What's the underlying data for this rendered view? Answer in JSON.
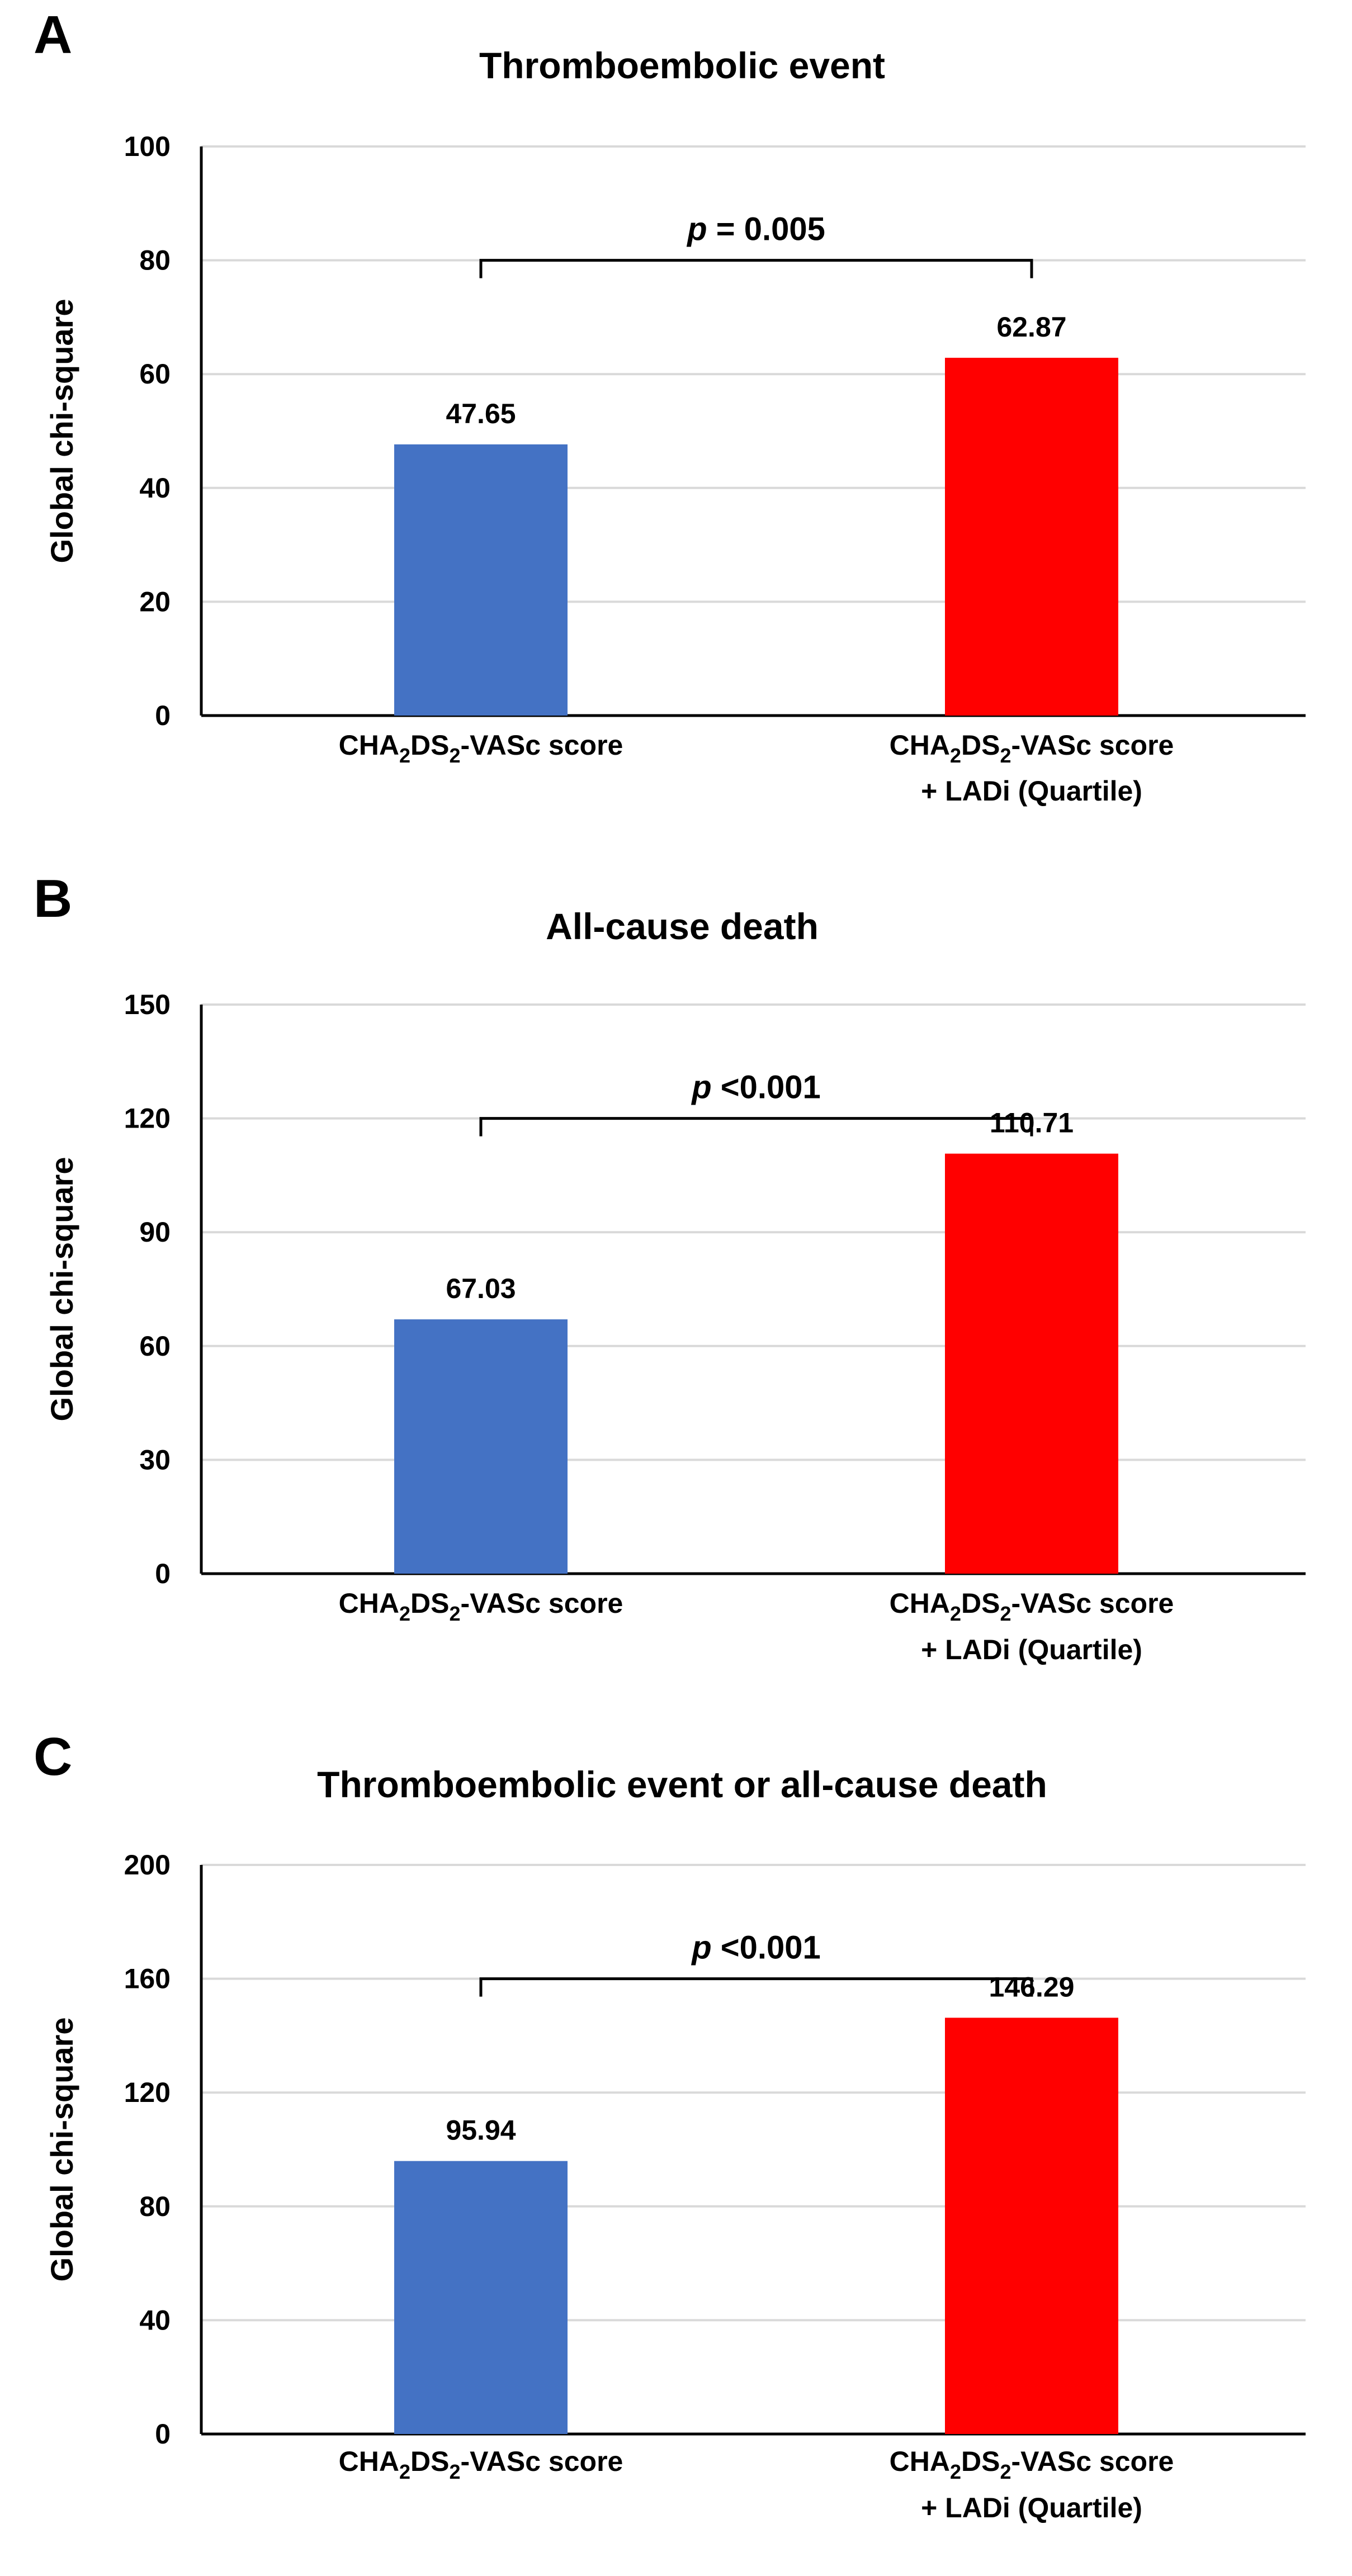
{
  "figure": {
    "category_labels": [
      {
        "main": "CHA",
        "sub1": "2",
        "mid": "DS",
        "sub2": "2",
        "tail": "-VASc score",
        "line2": ""
      },
      {
        "main": "CHA",
        "sub1": "2",
        "mid": "DS",
        "sub2": "2",
        "tail": "-VASc score",
        "line2": "+ LADi (Quartile)"
      }
    ]
  },
  "chart_data": [
    {
      "panel": "A",
      "type": "bar",
      "title": "Thromboembolic event",
      "ylabel": "Global chi-square",
      "xlabel": "",
      "categories": [
        "CHA2DS2-VASc score",
        "CHA2DS2-VASc score + LADi (Quartile)"
      ],
      "values": [
        47.65,
        62.87
      ],
      "value_labels": [
        "47.65",
        "62.87"
      ],
      "colors": [
        "#4472c4",
        "#ff0000"
      ],
      "ylim": [
        0,
        100
      ],
      "yticks": [
        0,
        20,
        40,
        60,
        80,
        100
      ],
      "grid": true,
      "comparison": {
        "p_symbol": "p",
        "p_text": " = 0.005",
        "bracket_at": 80
      }
    },
    {
      "panel": "B",
      "type": "bar",
      "title": "All-cause death",
      "ylabel": "Global chi-square",
      "xlabel": "",
      "categories": [
        "CHA2DS2-VASc score",
        "CHA2DS2-VASc score + LADi (Quartile)"
      ],
      "values": [
        67.03,
        110.71
      ],
      "value_labels": [
        "67.03",
        "110.71"
      ],
      "colors": [
        "#4472c4",
        "#ff0000"
      ],
      "ylim": [
        0,
        150
      ],
      "yticks": [
        0,
        30,
        60,
        90,
        120,
        150
      ],
      "grid": true,
      "comparison": {
        "p_symbol": "p",
        "p_text": " <0.001",
        "bracket_at": 120
      }
    },
    {
      "panel": "C",
      "type": "bar",
      "title": "Thromboembolic event or all-cause death",
      "ylabel": "Global chi-square",
      "xlabel": "",
      "categories": [
        "CHA2DS2-VASc score",
        "CHA2DS2-VASc score + LADi (Quartile)"
      ],
      "values": [
        95.94,
        146.29
      ],
      "value_labels": [
        "95.94",
        "146.29"
      ],
      "colors": [
        "#4472c4",
        "#ff0000"
      ],
      "ylim": [
        0,
        200
      ],
      "yticks": [
        0,
        40,
        80,
        120,
        160,
        200
      ],
      "grid": true,
      "comparison": {
        "p_symbol": "p",
        "p_text": " <0.001",
        "bracket_at": 160
      }
    }
  ]
}
